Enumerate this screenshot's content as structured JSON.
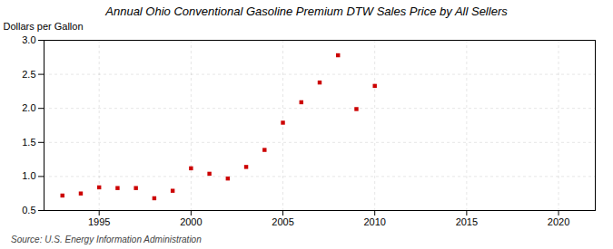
{
  "chart_data": {
    "type": "scatter",
    "title": "Annual Ohio Conventional Gasoline Premium DTW Sales Price by All Sellers",
    "ylabel": "Dollars per Gallon",
    "source": "Source: U.S. Energy Information Administration",
    "x": [
      1993,
      1994,
      1995,
      1996,
      1997,
      1998,
      1999,
      2000,
      2001,
      2002,
      2003,
      2004,
      2005,
      2006,
      2007,
      2008,
      2009,
      2010
    ],
    "values": [
      0.72,
      0.75,
      0.84,
      0.83,
      0.83,
      0.68,
      0.79,
      1.12,
      1.04,
      0.97,
      1.14,
      1.39,
      1.79,
      2.09,
      2.38,
      2.78,
      1.99,
      2.33
    ],
    "color": "#cc0000",
    "marker": "square",
    "xlim": [
      1992,
      2022
    ],
    "xticks": [
      1995,
      2000,
      2005,
      2010,
      2015,
      2020
    ],
    "ylim": [
      0.5,
      3.0
    ],
    "yticks": [
      0.5,
      {
        "value": 1,
        "label": "1.0"
      },
      1.5,
      {
        "value": 2,
        "label": "2.0"
      },
      2.5,
      {
        "value": 3,
        "label": "3.0"
      }
    ],
    "grid": true
  }
}
